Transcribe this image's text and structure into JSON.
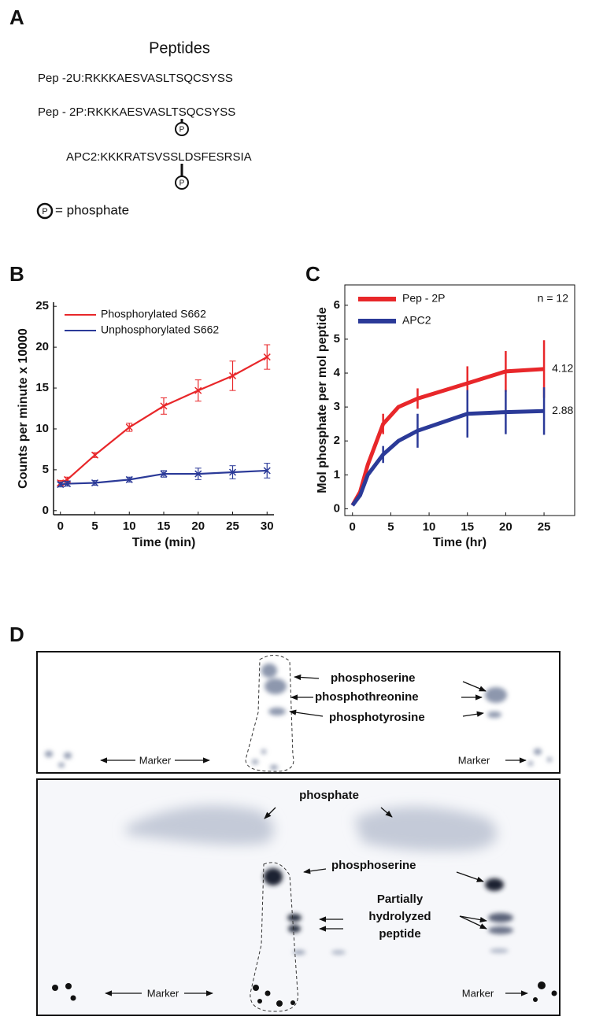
{
  "panel_a": {
    "letter": "A",
    "title": "Peptides",
    "lines": [
      "Pep -2U:RKKKAESVASLTSQCSYSS",
      "Pep - 2P:RKKKAESVASLTSQCSYSS",
      "APC2:KKKRATSVSSLDSFESRSIA"
    ],
    "phosphate_symbol": "P",
    "legend_text": "= phosphate"
  },
  "chart_data": [
    {
      "type": "line",
      "panel": "B",
      "xlabel": "Time (min)",
      "ylabel": "Counts per minute x 10000",
      "x": [
        0,
        1,
        5,
        10,
        15,
        20,
        25,
        30
      ],
      "series": [
        {
          "name": "Phosphorylated S662",
          "color": "#e8272a",
          "values": [
            3.4,
            3.8,
            6.8,
            10.2,
            12.8,
            14.7,
            16.5,
            18.8
          ],
          "errors": [
            0.3,
            0.3,
            0.3,
            0.5,
            1.0,
            1.3,
            1.8,
            1.5
          ]
        },
        {
          "name": "Unphosphorylated S662",
          "color": "#2b3a98",
          "values": [
            3.2,
            3.3,
            3.4,
            3.8,
            4.5,
            4.5,
            4.7,
            4.9
          ],
          "errors": [
            0.3,
            0.3,
            0.3,
            0.3,
            0.4,
            0.7,
            0.8,
            0.9
          ]
        }
      ],
      "xlim": [
        -1,
        31
      ],
      "xticks": [
        0,
        5,
        10,
        15,
        20,
        25,
        30
      ],
      "ylim": [
        -0.5,
        25.5
      ],
      "yticks": [
        0,
        5,
        10,
        15,
        20,
        25
      ],
      "markers": true,
      "frame": false,
      "legend": "upper left"
    },
    {
      "type": "line",
      "panel": "C",
      "xlabel": "Time (hr)",
      "ylabel": "Mol phosphate per mol peptide",
      "annotation": "n = 12",
      "x": [
        0,
        1,
        2,
        4,
        6,
        8.5,
        15,
        20,
        25
      ],
      "series": [
        {
          "name": "Pep - 2P",
          "color": "#e8272a",
          "values": [
            0.1,
            0.5,
            1.3,
            2.5,
            3.0,
            3.25,
            3.7,
            4.05,
            4.12
          ],
          "errors": [
            null,
            null,
            null,
            0.3,
            null,
            0.3,
            0.5,
            0.6,
            0.85
          ],
          "end_label": true
        },
        {
          "name": "APC2",
          "color": "#2b3a98",
          "values": [
            0.1,
            0.4,
            1.0,
            1.6,
            2.0,
            2.3,
            2.8,
            2.85,
            2.88
          ],
          "errors": [
            null,
            null,
            null,
            0.25,
            null,
            0.5,
            0.7,
            0.65,
            0.7
          ],
          "end_label": true
        }
      ],
      "xlim": [
        -1,
        29
      ],
      "xticks": [
        0,
        5,
        10,
        15,
        20,
        25
      ],
      "ylim": [
        -0.2,
        6.6
      ],
      "yticks": [
        0,
        1,
        2,
        3,
        4,
        5,
        6
      ],
      "markers": false,
      "frame": true,
      "legend": "upper left"
    }
  ],
  "panel_d": {
    "letter": "D",
    "top": {
      "phosphoserine": "phosphoserine",
      "phosphothreonine": "phosphothreonine",
      "phosphotyrosine": "phosphotyrosine",
      "marker_left": "Marker",
      "marker_right": "Marker"
    },
    "bottom": {
      "phosphate": "phosphate",
      "phosphoserine": "phosphoserine",
      "partial": [
        "Partially",
        "hydrolyzed",
        "peptide"
      ],
      "marker_left": "Marker",
      "marker_right": "Marker"
    }
  }
}
